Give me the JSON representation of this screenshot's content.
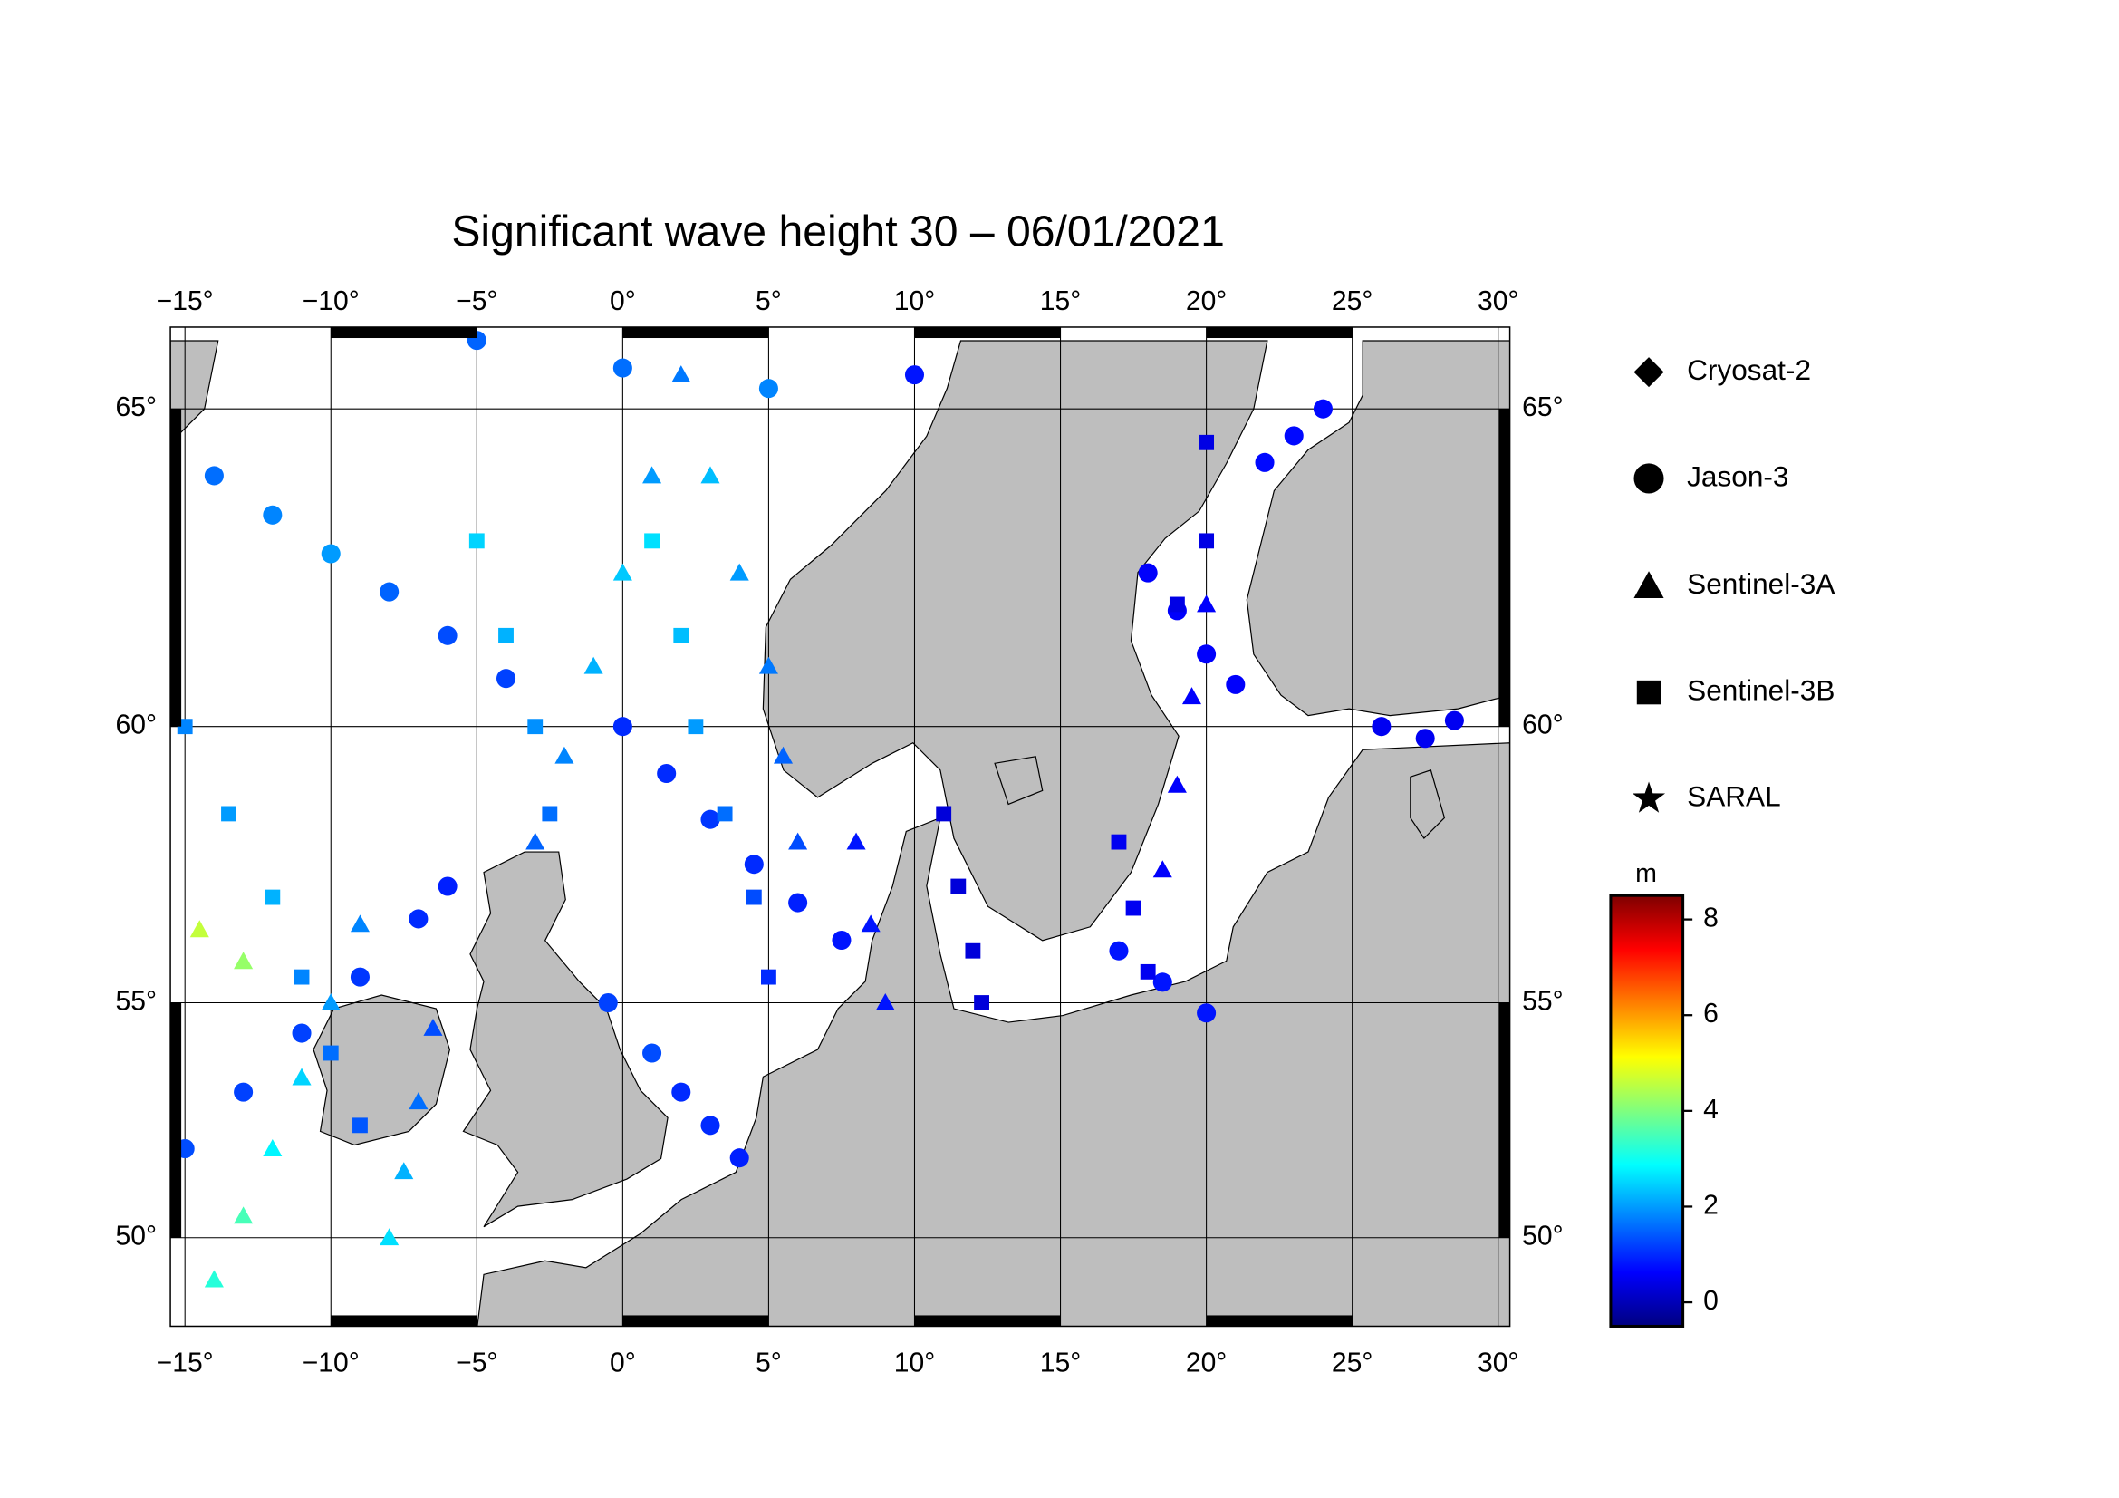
{
  "chart_data": {
    "type": "scatter",
    "title": "Significant wave height 30 – 06/01/2021",
    "xlim": [
      -15.5,
      30.4
    ],
    "ylim": [
      47.8,
      66.2
    ],
    "xticks": [
      {
        "value": -15,
        "label": "−15°"
      },
      {
        "value": -10,
        "label": "−10°"
      },
      {
        "value": -5,
        "label": "−5°"
      },
      {
        "value": 0,
        "label": "0°"
      },
      {
        "value": 5,
        "label": "5°"
      },
      {
        "value": 10,
        "label": "10°"
      },
      {
        "value": 15,
        "label": "15°"
      },
      {
        "value": 20,
        "label": "20°"
      },
      {
        "value": 25,
        "label": "25°"
      },
      {
        "value": 30,
        "label": "30°"
      }
    ],
    "yticks": [
      {
        "value": 50,
        "label": "50°"
      },
      {
        "value": 55,
        "label": "55°"
      },
      {
        "value": 60,
        "label": "60°"
      },
      {
        "value": 65,
        "label": "65°"
      }
    ],
    "grid": true,
    "colorbar": {
      "label": "m",
      "clim": [
        -0.5,
        8.5
      ],
      "ticks": [
        0,
        2,
        4,
        6,
        8
      ],
      "colormap": [
        "#00007f",
        "#0000ff",
        "#007fff",
        "#00ffff",
        "#7fff7f",
        "#ffff00",
        "#ff7f00",
        "#ff0000",
        "#7f0000"
      ]
    },
    "series": [
      {
        "name": "Cryosat-2",
        "marker": "diamond",
        "color": "#000000",
        "x": [],
        "y": [],
        "values": []
      },
      {
        "name": "Jason-3",
        "marker": "circle",
        "color": "#000000",
        "x": [
          -14,
          -12,
          -10,
          -8,
          -6,
          -4,
          -15,
          -13,
          -11,
          -9,
          -7,
          -6,
          0,
          1.5,
          3,
          4.5,
          6,
          7.5,
          -0.5,
          1,
          2,
          3,
          4,
          -5,
          0,
          5,
          10,
          18,
          19,
          20,
          21,
          22,
          23,
          24,
          17,
          18.5,
          20,
          26,
          27.5,
          28.5
        ],
        "y": [
          64,
          63.4,
          62.8,
          62.2,
          61.5,
          60.8,
          52,
          53.2,
          54.4,
          55.5,
          56.6,
          57.2,
          60,
          59.2,
          58.4,
          57.6,
          56.9,
          56.2,
          55,
          54,
          53.2,
          52.5,
          51.8,
          66,
          65.6,
          65.3,
          65.5,
          62.5,
          61.9,
          61.2,
          60.7,
          64.2,
          64.6,
          65,
          56,
          55.4,
          54.8,
          60,
          59.8,
          60.1
        ],
        "values": [
          1.6,
          1.8,
          2.0,
          1.5,
          1.3,
          1.2,
          1.3,
          1.2,
          1.2,
          1.1,
          1.0,
          0.9,
          1.0,
          1.0,
          1.1,
          1.0,
          0.9,
          0.8,
          1.2,
          1.3,
          1.0,
          1.0,
          0.9,
          1.5,
          1.6,
          1.8,
          0.8,
          0.6,
          0.6,
          0.6,
          0.6,
          0.7,
          0.7,
          0.7,
          0.8,
          0.8,
          0.8,
          0.5,
          0.5,
          0.5
        ]
      },
      {
        "name": "Sentinel-3A",
        "marker": "triangle",
        "color": "#000000",
        "x": [
          -14,
          -13,
          -12,
          -11,
          -10,
          -9,
          -14.5,
          -13,
          -3,
          -2,
          -1,
          0,
          1,
          2,
          3,
          4,
          5,
          5.5,
          6,
          -8,
          -7.5,
          -7,
          -6.5,
          8,
          8.5,
          9,
          20,
          19.5,
          19,
          18.5
        ],
        "y": [
          49,
          50.5,
          52,
          53.5,
          55,
          56.5,
          56.4,
          55.8,
          58,
          59.5,
          61,
          62.5,
          64,
          65.5,
          64,
          62.5,
          61,
          59.5,
          58,
          50,
          51.5,
          53,
          54.5,
          58,
          56.5,
          55,
          62,
          60.5,
          59,
          57.5
        ],
        "values": [
          3.2,
          3.5,
          2.8,
          2.5,
          2.0,
          1.8,
          4.6,
          4.2,
          1.5,
          1.8,
          2.2,
          2.4,
          2.0,
          1.7,
          2.3,
          2.0,
          1.7,
          1.5,
          1.3,
          2.6,
          2.2,
          1.6,
          1.3,
          0.8,
          0.8,
          0.8,
          0.6,
          0.6,
          0.6,
          0.6
        ]
      },
      {
        "name": "Sentinel-3B",
        "marker": "square",
        "color": "#000000",
        "x": [
          -15,
          -13.5,
          -12,
          -11,
          -10,
          -9,
          -5,
          -4,
          -3,
          -2.5,
          1,
          2,
          2.5,
          3.5,
          4.5,
          5,
          11,
          11.5,
          12,
          12.3,
          17,
          17.5,
          18,
          20,
          20,
          19
        ],
        "y": [
          60,
          58.5,
          57,
          55.5,
          54,
          52.5,
          63,
          61.5,
          60,
          58.5,
          63,
          61.5,
          60,
          58.5,
          57,
          55.5,
          58.5,
          57.2,
          56,
          55,
          58,
          56.8,
          55.6,
          64.5,
          63,
          62
        ],
        "values": [
          1.8,
          2.0,
          2.2,
          1.8,
          1.6,
          1.4,
          2.5,
          2.2,
          1.9,
          1.6,
          2.6,
          2.3,
          2.0,
          1.6,
          1.3,
          1.0,
          0.3,
          0.3,
          0.3,
          0.3,
          0.5,
          0.5,
          0.5,
          0.4,
          0.4,
          0.4
        ]
      },
      {
        "name": "SARAL",
        "marker": "star",
        "color": "#000000",
        "x": [],
        "y": [],
        "values": []
      }
    ]
  }
}
